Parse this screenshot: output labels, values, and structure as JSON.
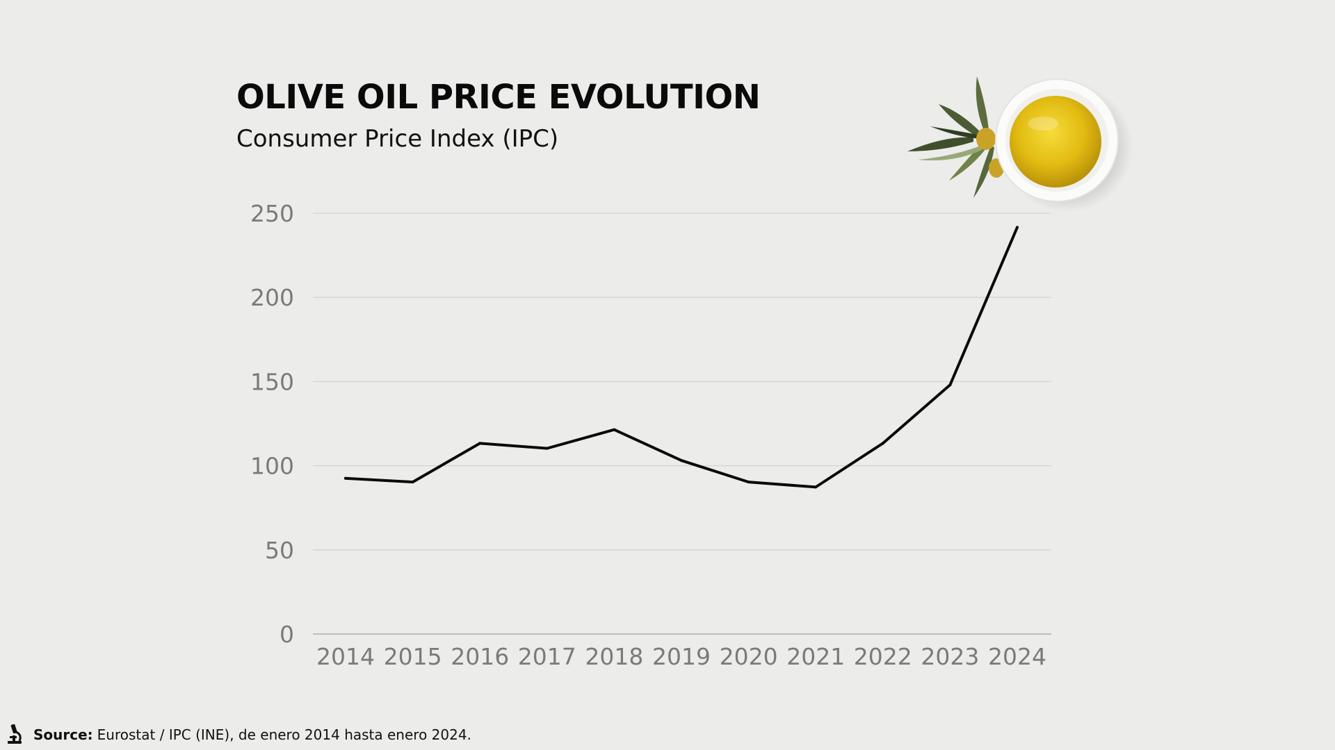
{
  "title": "OLIVE OIL PRICE EVOLUTION",
  "subtitle": "Consumer Price Index (IPC)",
  "footer": {
    "source_label": "Source:",
    "source_text": "Eurostat / IPC (INE), de enero 2014 hasta enero 2024.",
    "icon": "microscope-icon"
  },
  "decoration": {
    "image": "olive-oil-bowl-with-olive-branch"
  },
  "colors": {
    "background": "#ececeb",
    "line": "#0a0a0a",
    "gridline": "#d4d4d4",
    "tick_text": "#7a7a7a",
    "oil": "#e8c21a"
  },
  "chart_data": {
    "type": "line",
    "title": "OLIVE OIL PRICE EVOLUTION",
    "subtitle": "Consumer Price Index (IPC)",
    "xlabel": "",
    "ylabel": "",
    "x": [
      "2014",
      "2015",
      "2016",
      "2017",
      "2018",
      "2019",
      "2020",
      "2021",
      "2022",
      "2023",
      "2024"
    ],
    "series": [
      {
        "values": [
          92.5,
          90.3,
          113.3,
          110.3,
          121.4,
          103.1,
          90.3,
          87.3,
          113.3,
          148.0,
          241.6
        ]
      }
    ],
    "ylim": [
      0,
      250
    ],
    "yticks": [
      0,
      50,
      100,
      150,
      200,
      250
    ],
    "grid": true,
    "legend": "none"
  }
}
